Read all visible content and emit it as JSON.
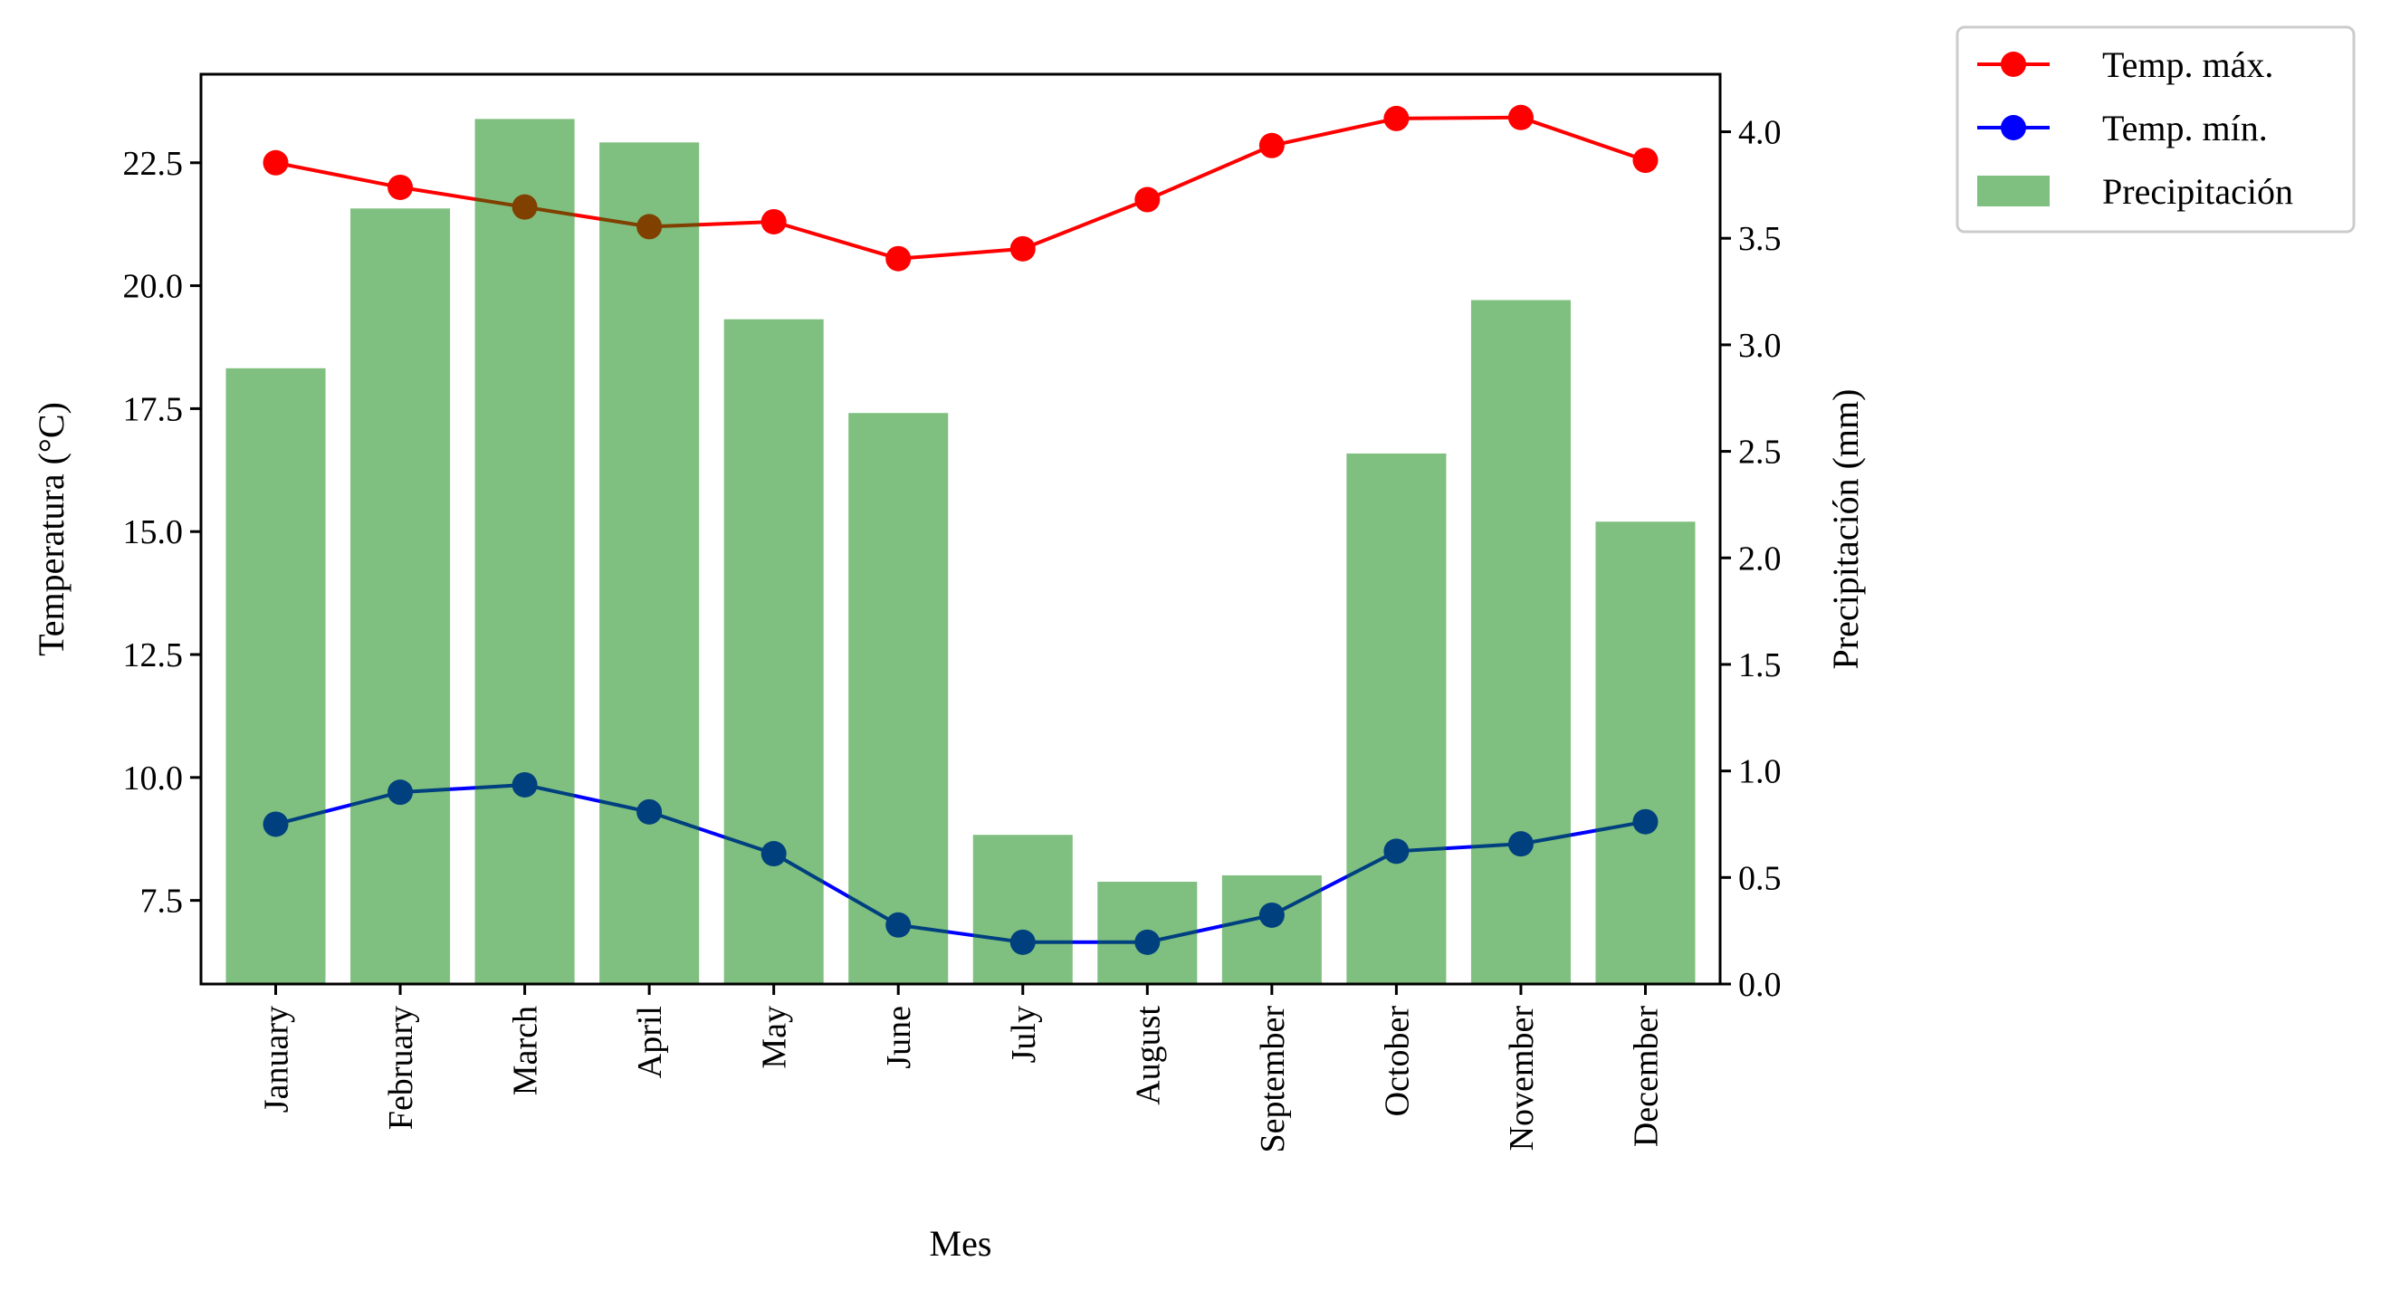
{
  "chart_data": {
    "type": "bar",
    "title": "",
    "xlabel": "Mes",
    "ylabel": "Temperatura (°C)",
    "ylabel_right": "Precipitación (mm)",
    "categories": [
      "January",
      "February",
      "March",
      "April",
      "May",
      "June",
      "July",
      "August",
      "September",
      "October",
      "November",
      "December"
    ],
    "series": [
      {
        "name": "Temp. máx.",
        "type": "line",
        "axis": "left",
        "color": "#ff0000",
        "values": [
          22.5,
          22.0,
          21.6,
          21.2,
          21.3,
          20.55,
          20.75,
          21.75,
          22.85,
          23.4,
          23.42,
          22.55
        ]
      },
      {
        "name": "Temp. mín.",
        "type": "line",
        "axis": "left",
        "color": "#0000ff",
        "values": [
          9.05,
          9.7,
          9.85,
          9.3,
          8.45,
          7.0,
          6.65,
          6.65,
          7.2,
          8.5,
          8.65,
          9.1
        ]
      },
      {
        "name": "Precipitación",
        "type": "bar",
        "axis": "right",
        "color": "#008000",
        "opacity": 0.5,
        "values": [
          2.89,
          3.64,
          4.06,
          3.95,
          3.12,
          2.68,
          0.7,
          0.48,
          0.51,
          2.49,
          3.21,
          2.17
        ]
      }
    ],
    "ylim": [
      5.8,
      24.3
    ],
    "ylim_right": [
      0,
      4.27
    ],
    "yticks": [
      7.5,
      10.0,
      12.5,
      15.0,
      17.5,
      20.0,
      22.5
    ],
    "ytick_labels": [
      "7.5",
      "10.0",
      "12.5",
      "15.0",
      "17.5",
      "20.0",
      "22.5"
    ],
    "yticks_right": [
      0,
      0.5,
      1.0,
      1.5,
      2.0,
      2.5,
      3.0,
      3.5,
      4.0
    ],
    "ytick_labels_right": [
      "0.0",
      "0.5",
      "1.0",
      "1.5",
      "2.0",
      "2.5",
      "3.0",
      "3.5",
      "4.0"
    ],
    "grid": false,
    "legend_position": "outside top-right"
  }
}
